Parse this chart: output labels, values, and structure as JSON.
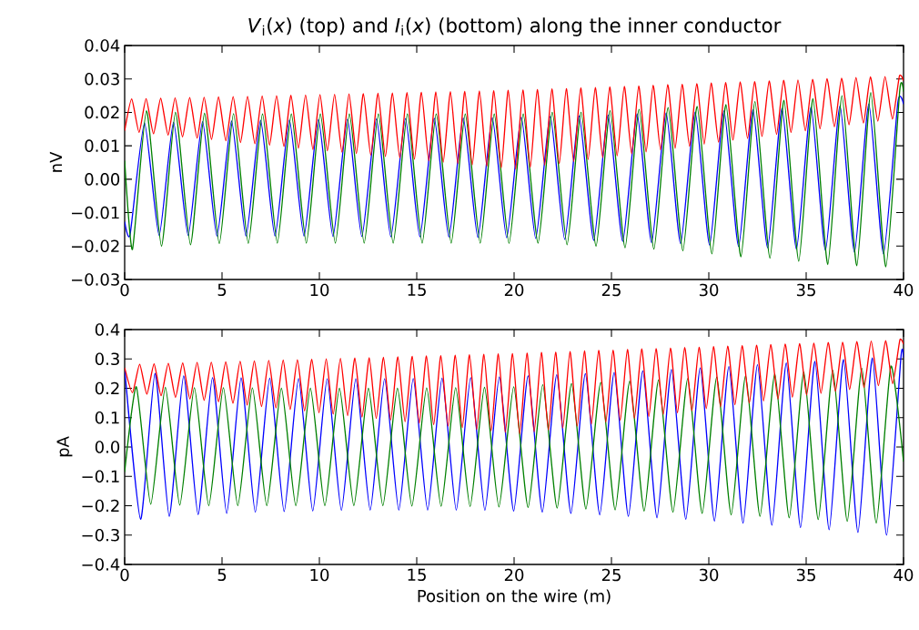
{
  "chart_data": [
    {
      "type": "line",
      "title": "*V*$_{i}$(*x*) (top) and *I*$_{i}$(*x*) (bottom) along the inner conductor",
      "ylabel": "nV",
      "xlim": [
        0,
        40
      ],
      "xticks": [
        0,
        5,
        10,
        15,
        20,
        25,
        30,
        35,
        40
      ],
      "ylim": [
        -0.03,
        0.04
      ],
      "yticks": [
        {
          "value": -0.03,
          "label": "−0.03"
        },
        {
          "value": -0.02,
          "label": "−0.02"
        },
        {
          "value": -0.01,
          "label": "−0.01"
        },
        {
          "value": 0,
          "label": "0.00"
        },
        {
          "value": 0.01,
          "label": "0.01"
        },
        {
          "value": 0.02,
          "label": "0.02"
        },
        {
          "value": 0.03,
          "label": "0.03"
        },
        {
          "value": 0.04,
          "label": "0.04"
        }
      ],
      "series": [
        {
          "color": "#0000ff",
          "x": [
            0,
            0.28,
            1.02,
            1.77,
            2.51,
            3.26,
            4.0,
            4.74,
            5.49,
            6.23,
            6.98,
            7.72,
            8.46,
            9.21,
            9.95,
            10.7,
            11.44,
            12.18,
            12.93,
            13.67,
            14.42,
            15.16,
            15.9,
            16.65,
            17.39,
            18.14,
            18.88,
            19.62,
            20.37,
            21.11,
            21.86,
            22.6,
            23.34,
            24.09,
            24.83,
            25.58,
            26.32,
            27.06,
            27.81,
            28.55,
            29.3,
            30.04,
            30.78,
            31.53,
            32.27,
            33.02,
            33.76,
            34.5,
            35.25,
            35.99,
            36.74,
            37.48,
            38.22,
            38.97,
            39.71,
            40
          ],
          "values": [
            -0.0127,
            -0.0165,
            0.0168,
            -0.0168,
            0.017,
            -0.0168,
            0.0172,
            -0.017,
            0.0174,
            -0.017,
            0.0176,
            -0.017,
            0.0177,
            -0.017,
            0.0178,
            -0.0171,
            0.0179,
            -0.0171,
            0.018,
            -0.0172,
            0.0181,
            -0.0172,
            0.0182,
            -0.0173,
            0.0183,
            -0.0174,
            0.0184,
            -0.0175,
            0.0185,
            -0.0177,
            0.0187,
            -0.018,
            0.0189,
            -0.0183,
            0.0192,
            -0.0186,
            0.0195,
            -0.019,
            0.0198,
            -0.0193,
            0.0201,
            -0.0197,
            0.0204,
            -0.0201,
            0.0208,
            -0.0205,
            0.0212,
            -0.0209,
            0.0216,
            -0.0213,
            0.022,
            -0.0218,
            0.0225,
            -0.0223,
            0.023,
            0.0225
          ]
        },
        {
          "color": "#008000",
          "x": [
            0,
            0.4,
            1.12,
            1.89,
            2.61,
            3.38,
            4.1,
            4.86,
            5.59,
            6.35,
            7.08,
            7.84,
            8.56,
            9.33,
            10.05,
            10.82,
            11.54,
            12.3,
            13.03,
            13.79,
            14.52,
            15.28,
            16.0,
            16.77,
            17.49,
            18.26,
            18.98,
            19.74,
            20.47,
            21.23,
            21.96,
            22.72,
            23.44,
            24.21,
            24.93,
            25.7,
            26.42,
            27.18,
            27.91,
            28.67,
            29.4,
            30.16,
            30.88,
            31.65,
            32.37,
            33.14,
            33.86,
            34.62,
            35.35,
            36.11,
            36.84,
            37.6,
            38.32,
            39.09,
            39.81,
            40
          ],
          "values": [
            0.0055,
            -0.021,
            0.0205,
            -0.02,
            0.02,
            -0.0196,
            0.0197,
            -0.0193,
            0.0196,
            -0.0192,
            0.0195,
            -0.0191,
            0.0195,
            -0.0191,
            0.0195,
            -0.0191,
            0.0195,
            -0.0191,
            0.0195,
            -0.0191,
            0.0195,
            -0.0191,
            0.0195,
            -0.0191,
            0.0195,
            -0.0191,
            0.0195,
            -0.0192,
            0.0195,
            -0.0191,
            0.02,
            -0.0196,
            0.02,
            -0.02,
            0.0205,
            -0.0205,
            0.0209,
            -0.0209,
            0.0214,
            -0.0214,
            0.0218,
            -0.0223,
            0.0223,
            -0.0232,
            0.0232,
            -0.0236,
            0.0236,
            -0.0245,
            0.0241,
            -0.0255,
            0.025,
            -0.0259,
            0.0259,
            -0.0262,
            0.0268,
            0.0262
          ]
        },
        {
          "color": "#ff0000",
          "x": [
            0,
            0.36,
            0.74,
            1.1,
            1.48,
            1.85,
            2.23,
            2.59,
            2.97,
            3.34,
            3.72,
            4.08,
            4.46,
            4.82,
            5.2,
            5.57,
            5.95,
            6.31,
            6.69,
            7.06,
            7.44,
            7.8,
            8.18,
            8.54,
            8.92,
            9.29,
            9.67,
            10.03,
            10.41,
            10.78,
            11.16,
            11.52,
            11.9,
            12.26,
            12.64,
            13.01,
            13.39,
            13.75,
            14.13,
            14.5,
            14.88,
            15.24,
            15.62,
            15.98,
            16.36,
            16.73,
            17.11,
            17.47,
            17.85,
            18.22,
            18.6,
            18.96,
            19.34,
            19.7,
            20.08,
            20.45,
            20.83,
            21.19,
            21.57,
            21.94,
            22.32,
            22.68,
            23.06,
            23.42,
            23.8,
            24.17,
            24.55,
            24.91,
            25.29,
            25.66,
            26.04,
            26.4,
            26.78,
            27.14,
            27.52,
            27.89,
            28.27,
            28.63,
            29.01,
            29.38,
            29.76,
            30.12,
            30.5,
            30.86,
            31.24,
            31.61,
            31.99,
            32.35,
            32.73,
            33.1,
            33.48,
            33.84,
            34.22,
            34.58,
            34.96,
            35.33,
            35.71,
            36.07,
            36.45,
            36.82,
            37.2,
            37.56,
            37.94,
            38.3,
            38.68,
            39.05,
            39.43,
            39.79,
            40
          ],
          "values": [
            0.0145,
            0.024,
            0.014,
            0.0241,
            0.0136,
            0.0242,
            0.0132,
            0.0243,
            0.0127,
            0.0244,
            0.0123,
            0.0245,
            0.0119,
            0.0246,
            0.0115,
            0.0247,
            0.011,
            0.0248,
            0.0106,
            0.0249,
            0.0102,
            0.025,
            0.0098,
            0.0251,
            0.0093,
            0.0252,
            0.0089,
            0.0253,
            0.0085,
            0.0254,
            0.0081,
            0.0255,
            0.0077,
            0.0256,
            0.0072,
            0.0257,
            0.0068,
            0.0258,
            0.0064,
            0.0259,
            0.006,
            0.026,
            0.0055,
            0.0261,
            0.0051,
            0.0262,
            0.0047,
            0.0263,
            0.0043,
            0.0264,
            0.0039,
            0.0265,
            0.0034,
            0.0266,
            0.003,
            0.0267,
            0.0036,
            0.0268,
            0.0042,
            0.027,
            0.0047,
            0.0271,
            0.0053,
            0.0273,
            0.0059,
            0.0274,
            0.0065,
            0.0276,
            0.007,
            0.0278,
            0.0076,
            0.0279,
            0.0082,
            0.0281,
            0.0088,
            0.0283,
            0.0093,
            0.0284,
            0.0099,
            0.0286,
            0.0105,
            0.0288,
            0.0111,
            0.0289,
            0.0117,
            0.0291,
            0.0122,
            0.0292,
            0.0128,
            0.0294,
            0.0134,
            0.0296,
            0.014,
            0.0297,
            0.0145,
            0.0299,
            0.0151,
            0.0301,
            0.0157,
            0.0302,
            0.0163,
            0.0304,
            0.0168,
            0.0306,
            0.0174,
            0.0307,
            0.018,
            0.0309,
            0.0295
          ]
        }
      ]
    },
    {
      "type": "line",
      "ylabel": "pA",
      "xlabel": "Position on the wire (m)",
      "xlim": [
        0,
        40
      ],
      "xticks": [
        0,
        5,
        10,
        15,
        20,
        25,
        30,
        35,
        40
      ],
      "ylim": [
        -0.4,
        0.4
      ],
      "yticks": [
        {
          "value": -0.4,
          "label": "−0.4"
        },
        {
          "value": -0.3,
          "label": "−0.3"
        },
        {
          "value": -0.2,
          "label": "−0.2"
        },
        {
          "value": -0.1,
          "label": "−0.1"
        },
        {
          "value": 0,
          "label": "0.0"
        },
        {
          "value": 0.1,
          "label": "0.1"
        },
        {
          "value": 0.2,
          "label": "0.2"
        },
        {
          "value": 0.3,
          "label": "0.3"
        },
        {
          "value": 0.4,
          "label": "0.4"
        }
      ],
      "series": [
        {
          "color": "#0000ff",
          "x": [
            0,
            0.82,
            1.56,
            2.29,
            3.03,
            3.77,
            4.51,
            5.24,
            5.98,
            6.71,
            7.45,
            8.19,
            8.93,
            9.66,
            10.4,
            11.13,
            11.87,
            12.61,
            13.35,
            14.08,
            14.82,
            15.56,
            16.3,
            17.03,
            17.77,
            18.5,
            19.24,
            19.98,
            20.72,
            21.45,
            22.19,
            22.92,
            23.66,
            24.4,
            25.14,
            25.87,
            26.61,
            27.34,
            28.08,
            28.82,
            29.56,
            30.29,
            31.03,
            31.76,
            32.5,
            33.24,
            33.98,
            34.71,
            35.45,
            36.18,
            36.92,
            37.66,
            38.4,
            39.13,
            39.87,
            40
          ],
          "values": [
            0.267,
            -0.246,
            0.251,
            -0.236,
            0.242,
            -0.23,
            0.236,
            -0.226,
            0.235,
            -0.222,
            0.234,
            -0.22,
            0.233,
            -0.218,
            0.232,
            -0.216,
            0.232,
            -0.215,
            0.232,
            -0.215,
            0.233,
            -0.215,
            0.234,
            -0.215,
            0.236,
            -0.216,
            0.238,
            -0.218,
            0.242,
            -0.222,
            0.246,
            -0.226,
            0.25,
            -0.231,
            0.254,
            -0.236,
            0.259,
            -0.241,
            0.264,
            -0.246,
            0.269,
            -0.252,
            0.274,
            -0.259,
            0.28,
            -0.266,
            0.286,
            -0.274,
            0.292,
            -0.282,
            0.298,
            -0.291,
            0.303,
            -0.3,
            0.308,
            0.305
          ]
        },
        {
          "color": "#008000",
          "x": [
            0,
            0.6,
            1.34,
            2.09,
            2.83,
            3.58,
            4.32,
            5.07,
            5.81,
            6.56,
            7.3,
            8.05,
            8.79,
            9.54,
            10.28,
            11.03,
            11.77,
            12.52,
            13.26,
            14.01,
            14.75,
            15.51,
            16.25,
            17.0,
            17.74,
            18.48,
            19.22,
            19.98,
            20.72,
            21.47,
            22.21,
            22.95,
            23.69,
            24.45,
            25.19,
            25.94,
            26.68,
            27.42,
            28.16,
            28.92,
            29.66,
            30.41,
            31.15,
            31.89,
            32.63,
            33.39,
            34.13,
            34.88,
            35.62,
            36.37,
            37.11,
            37.86,
            38.6,
            39.35,
            40
          ],
          "values": [
            -0.085,
            0.205,
            -0.195,
            0.203,
            -0.198,
            0.202,
            -0.2,
            0.202,
            -0.2,
            0.201,
            -0.2,
            0.2,
            -0.2,
            0.2,
            -0.2,
            0.2,
            -0.2,
            0.2,
            -0.2,
            0.2,
            -0.201,
            0.201,
            -0.202,
            0.202,
            -0.203,
            0.203,
            -0.204,
            0.205,
            -0.206,
            0.212,
            -0.208,
            0.216,
            -0.211,
            0.22,
            -0.214,
            0.224,
            -0.218,
            0.228,
            -0.222,
            0.233,
            -0.226,
            0.238,
            -0.231,
            0.243,
            -0.236,
            0.249,
            -0.241,
            0.255,
            -0.247,
            0.261,
            -0.253,
            0.268,
            -0.259,
            0.275,
            -0.05
          ]
        },
        {
          "color": "#ff0000",
          "x": [
            0,
            0.4,
            0.77,
            1.14,
            1.51,
            1.87,
            2.24,
            2.61,
            2.98,
            3.35,
            3.72,
            4.08,
            4.45,
            4.82,
            5.19,
            5.56,
            5.93,
            6.29,
            6.66,
            7.03,
            7.4,
            7.77,
            8.14,
            8.5,
            8.87,
            9.24,
            9.61,
            9.98,
            10.35,
            10.71,
            11.08,
            11.45,
            11.82,
            12.19,
            12.56,
            12.92,
            13.29,
            13.66,
            14.03,
            14.4,
            14.77,
            15.13,
            15.5,
            15.87,
            16.24,
            16.61,
            16.98,
            17.34,
            17.71,
            18.08,
            18.45,
            18.82,
            19.19,
            19.55,
            19.92,
            20.29,
            20.66,
            21.03,
            21.4,
            21.76,
            22.13,
            22.5,
            22.87,
            23.24,
            23.61,
            23.97,
            24.34,
            24.71,
            25.08,
            25.45,
            25.82,
            26.18,
            26.55,
            26.92,
            27.29,
            27.66,
            28.03,
            28.39,
            28.76,
            29.13,
            29.5,
            29.87,
            30.24,
            30.6,
            30.97,
            31.34,
            31.71,
            32.08,
            32.45,
            32.81,
            33.18,
            33.55,
            33.92,
            34.29,
            34.66,
            35.02,
            35.39,
            35.76,
            36.13,
            36.5,
            36.87,
            37.23,
            37.6,
            37.97,
            38.34,
            38.71,
            39.08,
            39.44,
            39.81,
            40
          ],
          "values": [
            0.27,
            0.185,
            0.282,
            0.18,
            0.283,
            0.175,
            0.285,
            0.169,
            0.286,
            0.164,
            0.288,
            0.159,
            0.289,
            0.154,
            0.29,
            0.149,
            0.292,
            0.143,
            0.293,
            0.138,
            0.295,
            0.133,
            0.296,
            0.128,
            0.297,
            0.123,
            0.299,
            0.117,
            0.3,
            0.112,
            0.302,
            0.107,
            0.303,
            0.102,
            0.304,
            0.097,
            0.306,
            0.092,
            0.307,
            0.086,
            0.309,
            0.081,
            0.31,
            0.076,
            0.311,
            0.071,
            0.313,
            0.066,
            0.314,
            0.06,
            0.316,
            0.055,
            0.317,
            0.05,
            0.318,
            0.045,
            0.32,
            0.052,
            0.322,
            0.058,
            0.323,
            0.065,
            0.325,
            0.071,
            0.327,
            0.078,
            0.329,
            0.085,
            0.33,
            0.091,
            0.332,
            0.098,
            0.334,
            0.104,
            0.335,
            0.111,
            0.337,
            0.117,
            0.339,
            0.124,
            0.34,
            0.131,
            0.342,
            0.137,
            0.344,
            0.144,
            0.345,
            0.15,
            0.347,
            0.157,
            0.349,
            0.163,
            0.351,
            0.17,
            0.352,
            0.177,
            0.354,
            0.183,
            0.356,
            0.19,
            0.357,
            0.196,
            0.359,
            0.203,
            0.361,
            0.209,
            0.362,
            0.216,
            0.364,
            0.35
          ]
        }
      ]
    }
  ]
}
